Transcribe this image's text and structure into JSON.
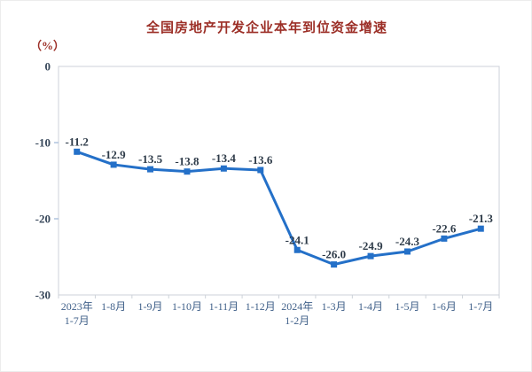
{
  "page": {
    "background": "#ffffff"
  },
  "chart_data": {
    "type": "line",
    "title": "全国房地产开发企业本年到位资金增速",
    "unit_label": "（%）",
    "categories": [
      "2023年 1-7月",
      "1-8月",
      "1-9月",
      "1-10月",
      "1-11月",
      "1-12月",
      "2024年 1-2月",
      "1-3月",
      "1-4月",
      "1-5月",
      "1-6月",
      "1-7月"
    ],
    "values": [
      -11.2,
      -12.9,
      -13.5,
      -13.8,
      -13.4,
      -13.6,
      -24.1,
      -26.0,
      -24.9,
      -24.3,
      -22.6,
      -21.3
    ],
    "data_labels": [
      "-11.2",
      "-12.9",
      "-13.5",
      "-13.8",
      "-13.4",
      "-13.6",
      "-24.1",
      "-26.0",
      "-24.9",
      "-24.3",
      "-22.6",
      "-21.3"
    ],
    "yticks": [
      0,
      -10,
      -20,
      -30
    ],
    "ylim": [
      -30,
      0
    ],
    "grid": false,
    "legend": "none",
    "marker": "square",
    "line_width": 3,
    "colors": {
      "line": "#2470C8",
      "title": "#9C2F27",
      "unit": "#9C2F27",
      "axis": "#CDD2D9",
      "tick": "#AFC3DD",
      "tick_label": "#37475A",
      "data_label": "#2E3B49",
      "x_label": "#41618A"
    }
  }
}
